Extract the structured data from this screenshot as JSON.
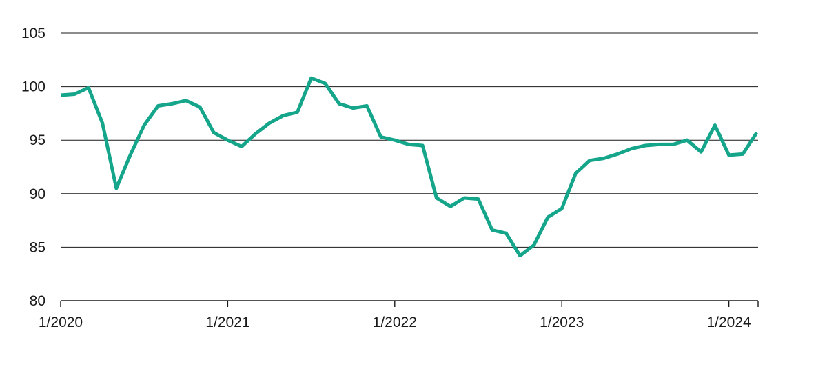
{
  "chart_data": {
    "type": "line",
    "title": "",
    "xlabel": "",
    "ylabel": "",
    "ylim": [
      80,
      105
    ],
    "y_ticks": [
      80,
      85,
      90,
      95,
      100,
      105
    ],
    "y_tick_labels": [
      "80",
      "85",
      "90",
      "95",
      "100",
      "105"
    ],
    "x_ticks": [
      "1/2020",
      "1/2021",
      "1/2022",
      "1/2023",
      "1/2024"
    ],
    "x_tick_labels": [
      "1/2020",
      "1/2021",
      "1/2022",
      "1/2023",
      "1/2024"
    ],
    "grid": "horizontal",
    "line_color": "#14a58a",
    "series": [
      {
        "x": [
          "2020-01",
          "2020-02",
          "2020-03",
          "2020-04",
          "2020-05",
          "2020-06",
          "2020-07",
          "2020-08",
          "2020-09",
          "2020-10",
          "2020-11",
          "2020-12",
          "2021-01",
          "2021-02",
          "2021-03",
          "2021-04",
          "2021-05",
          "2021-06",
          "2021-07",
          "2021-08",
          "2021-09",
          "2021-10",
          "2021-11",
          "2021-12",
          "2022-01",
          "2022-02",
          "2022-03",
          "2022-04",
          "2022-05",
          "2022-06",
          "2022-07",
          "2022-08",
          "2022-09",
          "2022-10",
          "2022-11",
          "2022-12",
          "2023-01",
          "2023-02",
          "2023-03",
          "2023-04",
          "2023-05",
          "2023-06",
          "2023-07",
          "2023-08",
          "2023-09",
          "2023-10",
          "2023-11",
          "2023-12",
          "2024-01",
          "2024-02",
          "2024-03"
        ],
        "values": [
          99.2,
          99.3,
          99.9,
          96.6,
          90.5,
          93.6,
          96.4,
          98.2,
          98.4,
          98.7,
          98.1,
          95.7,
          95.0,
          94.4,
          95.6,
          96.6,
          97.3,
          97.6,
          100.8,
          100.3,
          98.4,
          98.0,
          98.2,
          95.3,
          95.0,
          94.6,
          94.5,
          89.6,
          88.8,
          89.6,
          89.5,
          86.6,
          86.3,
          84.2,
          85.2,
          87.8,
          88.6,
          91.9,
          93.1,
          93.3,
          93.7,
          94.2,
          94.5,
          94.6,
          94.6,
          95.0,
          93.9,
          96.4,
          93.6,
          93.7,
          95.7
        ]
      }
    ]
  }
}
